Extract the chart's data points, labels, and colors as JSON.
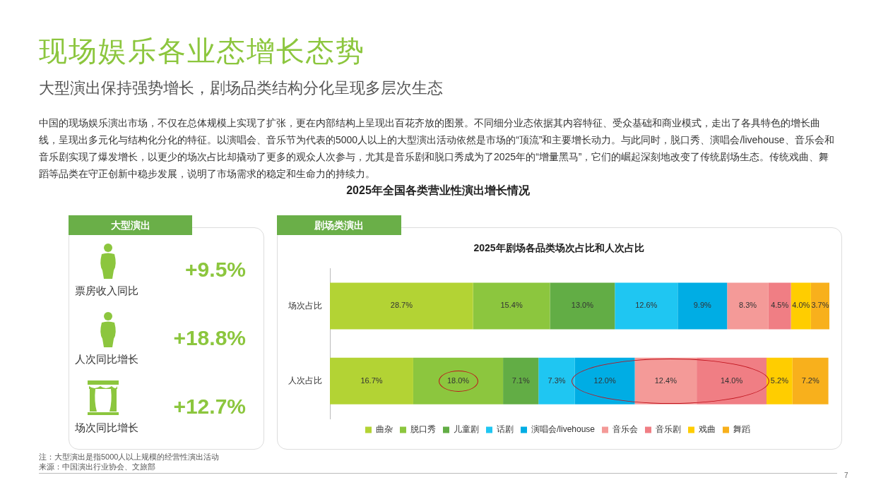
{
  "chart_data": [
    {
      "type": "other",
      "title": "现场娱乐各业态增长态势",
      "subtitle": "大型演出保持强势增长，剧场品类结构分化呈现多层次生态",
      "annotations": [
        "中国的现场娱乐演出市场，不仅在总体规模上实现了扩张，更在内部结构上呈现出百花齐放的图景。不同细分业态依据其内容特征、受众基础和商业模式，走出了各具特色的增长曲线，呈现出多元化与结构化分化的特征。以演唱会、音乐节为代表的5000人以上的大型演出活动依然是市场的“顶流”和主要增长动力。与此同时，脱口秀、演唱会/livehouse、音乐会和音乐剧实现了爆发增长，以更少的场次占比却撬动了更多的观众人次参与，尤其是音乐剧和脱口秀成为了2025年的“增量黑马”，它们的崛起深刻地改变了传统剧场生态。传统戏曲、舞蹈等品类在守正创新中稳步发展，说明了市场需求的稳定和生命力的持续力。",
        "2025年全国各类营业性演出增长情况",
        "注：大型演出是指5000人以上规模的经营性演出活动",
        "来源：中国演出行业协会、文旅部",
        "7"
      ]
    },
    {
      "type": "other",
      "title": "大型演出",
      "annotations": [
        "票房收入同比",
        "+9.5%",
        "人次同比增长",
        "+18.8%",
        "场次同比增长",
        "+12.7%"
      ]
    },
    {
      "type": "bar",
      "title": "剧场类演出",
      "subtitle": "2025年剧场各品类场次占比和人次占比",
      "orientation": "horizontal",
      "stacked": true,
      "categories": [
        "场次占比",
        "人次占比"
      ],
      "tick_labels": "y",
      "legend": "bottom",
      "series": [
        {
          "name": "曲杂",
          "color": "#b3d334",
          "values": [
            28.7,
            16.7
          ],
          "value_labels": [
            "28.7%",
            "16.7%"
          ]
        },
        {
          "name": "脱口秀",
          "color": "#8cc63e",
          "values": [
            15.4,
            18.0
          ],
          "value_labels": [
            "15.4%",
            "18.0%"
          ]
        },
        {
          "name": "儿童剧",
          "color": "#62ad45",
          "values": [
            13.0,
            7.1
          ],
          "value_labels": [
            "13.0%",
            "7.1%"
          ]
        },
        {
          "name": "话剧",
          "color": "#1fc6f2",
          "values": [
            12.6,
            7.3
          ],
          "value_labels": [
            "12.6%",
            "7.3%"
          ]
        },
        {
          "name": "演唱会/livehouse",
          "color": "#00ade4",
          "values": [
            9.9,
            12.0
          ],
          "value_labels": [
            "9.9%",
            "12.0%"
          ]
        },
        {
          "name": "音乐会",
          "color": "#f49a98",
          "values": [
            8.3,
            12.4
          ],
          "value_labels": [
            "8.3%",
            "12.4%"
          ]
        },
        {
          "name": "音乐剧",
          "color": "#f07e84",
          "values": [
            4.5,
            14.0
          ],
          "value_labels": [
            "4.5%",
            "14.0%"
          ]
        },
        {
          "name": "戏曲",
          "color": "#ffcd00",
          "values": [
            4.0,
            5.2
          ],
          "value_labels": [
            "4.0%",
            "5.2%"
          ]
        },
        {
          "name": "舞蹈",
          "color": "#f8b01c",
          "values": [
            3.7,
            7.2
          ],
          "value_labels": [
            "3.7%",
            "7.2%"
          ]
        }
      ]
    }
  ]
}
